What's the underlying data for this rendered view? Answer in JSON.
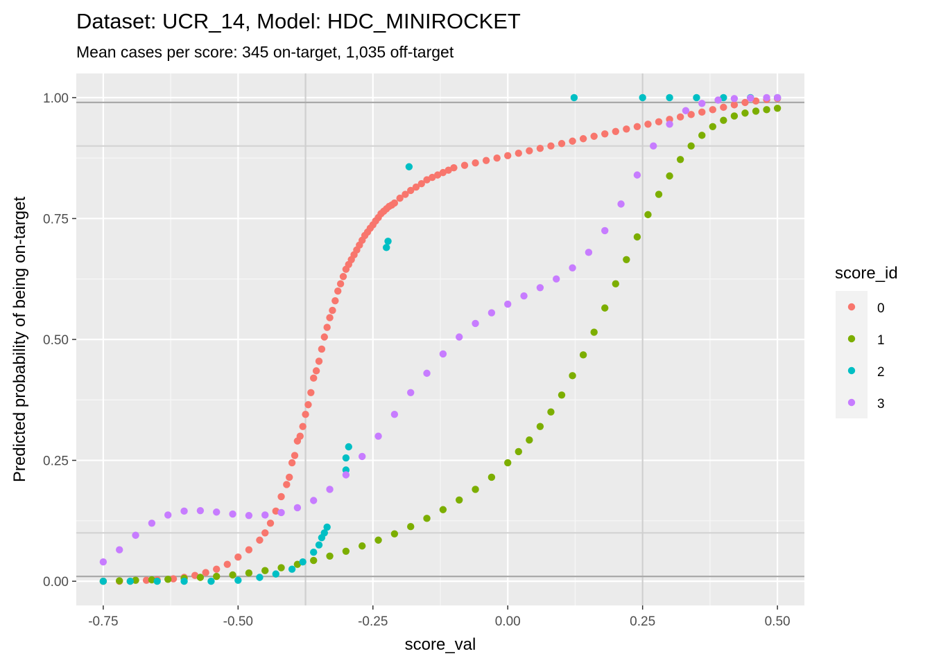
{
  "chart_data": {
    "type": "scatter",
    "title": "Dataset: UCR_14, Model: HDC_MINIROCKET",
    "subtitle": "Mean cases per score: 345 on-target, 1,035 off-target",
    "xlabel": "score_val",
    "ylabel": "Predicted probability of being on-target",
    "xlim": [
      -0.8,
      0.55
    ],
    "ylim": [
      -0.05,
      1.05
    ],
    "x_ticks": [
      -0.75,
      -0.5,
      -0.25,
      0.0,
      0.25,
      0.5
    ],
    "x_tick_labels": [
      "-0.75",
      "-0.50",
      "-0.25",
      "0.00",
      "0.25",
      "0.50"
    ],
    "y_ticks": [
      0.0,
      0.25,
      0.5,
      0.75,
      1.0
    ],
    "y_tick_labels": [
      "0.00",
      "0.25",
      "0.50",
      "0.75",
      "1.00"
    ],
    "grid": true,
    "reference_lines": {
      "vertical": [
        -0.375,
        0.25
      ],
      "horizontal_dark": [
        0.01,
        0.99
      ],
      "horizontal_light": [
        0.1,
        0.9
      ]
    },
    "legend": {
      "title": "score_id",
      "position": "right",
      "entries": [
        {
          "label": "0",
          "color": "#F8766D"
        },
        {
          "label": "1",
          "color": "#7CAE00"
        },
        {
          "label": "2",
          "color": "#00BFC4"
        },
        {
          "label": "3",
          "color": "#C77CFF"
        }
      ]
    },
    "series": [
      {
        "name": "0",
        "color": "#F8766D",
        "points": [
          [
            -0.75,
            0.0
          ],
          [
            -0.72,
            0.0
          ],
          [
            -0.7,
            0.0
          ],
          [
            -0.67,
            0.002
          ],
          [
            -0.65,
            0.003
          ],
          [
            -0.62,
            0.005
          ],
          [
            -0.6,
            0.008
          ],
          [
            -0.58,
            0.012
          ],
          [
            -0.56,
            0.018
          ],
          [
            -0.54,
            0.025
          ],
          [
            -0.52,
            0.035
          ],
          [
            -0.5,
            0.05
          ],
          [
            -0.48,
            0.065
          ],
          [
            -0.46,
            0.085
          ],
          [
            -0.45,
            0.1
          ],
          [
            -0.44,
            0.12
          ],
          [
            -0.43,
            0.145
          ],
          [
            -0.42,
            0.175
          ],
          [
            -0.41,
            0.2
          ],
          [
            -0.405,
            0.215
          ],
          [
            -0.4,
            0.245
          ],
          [
            -0.395,
            0.26
          ],
          [
            -0.39,
            0.29
          ],
          [
            -0.385,
            0.3
          ],
          [
            -0.38,
            0.32
          ],
          [
            -0.375,
            0.345
          ],
          [
            -0.37,
            0.365
          ],
          [
            -0.365,
            0.39
          ],
          [
            -0.36,
            0.42
          ],
          [
            -0.355,
            0.435
          ],
          [
            -0.35,
            0.455
          ],
          [
            -0.345,
            0.48
          ],
          [
            -0.34,
            0.505
          ],
          [
            -0.335,
            0.525
          ],
          [
            -0.33,
            0.545
          ],
          [
            -0.325,
            0.56
          ],
          [
            -0.32,
            0.58
          ],
          [
            -0.315,
            0.6
          ],
          [
            -0.31,
            0.615
          ],
          [
            -0.305,
            0.63
          ],
          [
            -0.3,
            0.645
          ],
          [
            -0.295,
            0.655
          ],
          [
            -0.29,
            0.665
          ],
          [
            -0.285,
            0.675
          ],
          [
            -0.28,
            0.685
          ],
          [
            -0.275,
            0.695
          ],
          [
            -0.27,
            0.705
          ],
          [
            -0.265,
            0.715
          ],
          [
            -0.26,
            0.722
          ],
          [
            -0.255,
            0.73
          ],
          [
            -0.25,
            0.737
          ],
          [
            -0.245,
            0.745
          ],
          [
            -0.24,
            0.752
          ],
          [
            -0.235,
            0.76
          ],
          [
            -0.23,
            0.765
          ],
          [
            -0.225,
            0.77
          ],
          [
            -0.22,
            0.775
          ],
          [
            -0.215,
            0.778
          ],
          [
            -0.21,
            0.782
          ],
          [
            -0.2,
            0.792
          ],
          [
            -0.19,
            0.8
          ],
          [
            -0.18,
            0.808
          ],
          [
            -0.17,
            0.815
          ],
          [
            -0.16,
            0.822
          ],
          [
            -0.15,
            0.83
          ],
          [
            -0.14,
            0.835
          ],
          [
            -0.13,
            0.84
          ],
          [
            -0.12,
            0.845
          ],
          [
            -0.11,
            0.85
          ],
          [
            -0.1,
            0.855
          ],
          [
            -0.08,
            0.86
          ],
          [
            -0.06,
            0.865
          ],
          [
            -0.04,
            0.87
          ],
          [
            -0.02,
            0.875
          ],
          [
            0.0,
            0.88
          ],
          [
            0.02,
            0.885
          ],
          [
            0.04,
            0.89
          ],
          [
            0.06,
            0.895
          ],
          [
            0.08,
            0.9
          ],
          [
            0.1,
            0.905
          ],
          [
            0.12,
            0.91
          ],
          [
            0.14,
            0.915
          ],
          [
            0.16,
            0.92
          ],
          [
            0.18,
            0.925
          ],
          [
            0.2,
            0.93
          ],
          [
            0.22,
            0.935
          ],
          [
            0.24,
            0.94
          ],
          [
            0.26,
            0.945
          ],
          [
            0.28,
            0.95
          ],
          [
            0.3,
            0.955
          ],
          [
            0.32,
            0.96
          ],
          [
            0.34,
            0.965
          ],
          [
            0.36,
            0.97
          ],
          [
            0.38,
            0.975
          ],
          [
            0.4,
            0.98
          ],
          [
            0.42,
            0.985
          ],
          [
            0.44,
            0.99
          ],
          [
            0.46,
            0.993
          ],
          [
            0.48,
            0.996
          ],
          [
            0.5,
            0.998
          ]
        ]
      },
      {
        "name": "1",
        "color": "#7CAE00",
        "points": [
          [
            -0.75,
            0.0
          ],
          [
            -0.72,
            0.001
          ],
          [
            -0.69,
            0.002
          ],
          [
            -0.66,
            0.003
          ],
          [
            -0.63,
            0.004
          ],
          [
            -0.6,
            0.006
          ],
          [
            -0.57,
            0.008
          ],
          [
            -0.54,
            0.01
          ],
          [
            -0.51,
            0.013
          ],
          [
            -0.48,
            0.017
          ],
          [
            -0.45,
            0.022
          ],
          [
            -0.42,
            0.028
          ],
          [
            -0.39,
            0.035
          ],
          [
            -0.36,
            0.043
          ],
          [
            -0.33,
            0.052
          ],
          [
            -0.3,
            0.062
          ],
          [
            -0.27,
            0.073
          ],
          [
            -0.24,
            0.085
          ],
          [
            -0.21,
            0.098
          ],
          [
            -0.18,
            0.113
          ],
          [
            -0.15,
            0.13
          ],
          [
            -0.12,
            0.148
          ],
          [
            -0.09,
            0.168
          ],
          [
            -0.06,
            0.19
          ],
          [
            -0.03,
            0.215
          ],
          [
            0.0,
            0.245
          ],
          [
            0.02,
            0.268
          ],
          [
            0.04,
            0.292
          ],
          [
            0.06,
            0.32
          ],
          [
            0.08,
            0.35
          ],
          [
            0.1,
            0.385
          ],
          [
            0.12,
            0.425
          ],
          [
            0.14,
            0.468
          ],
          [
            0.16,
            0.515
          ],
          [
            0.18,
            0.565
          ],
          [
            0.2,
            0.615
          ],
          [
            0.22,
            0.665
          ],
          [
            0.24,
            0.712
          ],
          [
            0.26,
            0.758
          ],
          [
            0.28,
            0.8
          ],
          [
            0.3,
            0.838
          ],
          [
            0.32,
            0.872
          ],
          [
            0.34,
            0.9
          ],
          [
            0.36,
            0.922
          ],
          [
            0.38,
            0.94
          ],
          [
            0.4,
            0.953
          ],
          [
            0.42,
            0.962
          ],
          [
            0.44,
            0.968
          ],
          [
            0.46,
            0.972
          ],
          [
            0.48,
            0.975
          ],
          [
            0.5,
            0.978
          ]
        ]
      },
      {
        "name": "2",
        "color": "#00BFC4",
        "points": [
          [
            -0.75,
            0.0
          ],
          [
            -0.7,
            0.0
          ],
          [
            -0.65,
            0.0
          ],
          [
            -0.6,
            0.0
          ],
          [
            -0.55,
            0.0
          ],
          [
            -0.5,
            0.002
          ],
          [
            -0.46,
            0.008
          ],
          [
            -0.43,
            0.015
          ],
          [
            -0.4,
            0.025
          ],
          [
            -0.38,
            0.04
          ],
          [
            -0.36,
            0.06
          ],
          [
            -0.35,
            0.075
          ],
          [
            -0.345,
            0.09
          ],
          [
            -0.34,
            0.1
          ],
          [
            -0.335,
            0.112
          ],
          [
            -0.3,
            0.23
          ],
          [
            -0.3,
            0.255
          ],
          [
            -0.295,
            0.278
          ],
          [
            -0.225,
            0.69
          ],
          [
            -0.222,
            0.703
          ],
          [
            -0.183,
            0.857
          ],
          [
            0.123,
            1.0
          ],
          [
            0.25,
            1.0
          ],
          [
            0.3,
            1.0
          ],
          [
            0.35,
            1.0
          ],
          [
            0.4,
            1.0
          ],
          [
            0.45,
            1.0
          ],
          [
            0.5,
            1.0
          ]
        ]
      },
      {
        "name": "3",
        "color": "#C77CFF",
        "points": [
          [
            -0.75,
            0.04
          ],
          [
            -0.72,
            0.065
          ],
          [
            -0.69,
            0.095
          ],
          [
            -0.66,
            0.12
          ],
          [
            -0.63,
            0.137
          ],
          [
            -0.6,
            0.145
          ],
          [
            -0.57,
            0.146
          ],
          [
            -0.54,
            0.143
          ],
          [
            -0.51,
            0.139
          ],
          [
            -0.48,
            0.136
          ],
          [
            -0.45,
            0.137
          ],
          [
            -0.42,
            0.142
          ],
          [
            -0.39,
            0.152
          ],
          [
            -0.36,
            0.167
          ],
          [
            -0.33,
            0.19
          ],
          [
            -0.3,
            0.22
          ],
          [
            -0.27,
            0.258
          ],
          [
            -0.24,
            0.3
          ],
          [
            -0.21,
            0.345
          ],
          [
            -0.18,
            0.39
          ],
          [
            -0.15,
            0.43
          ],
          [
            -0.12,
            0.47
          ],
          [
            -0.09,
            0.505
          ],
          [
            -0.06,
            0.533
          ],
          [
            -0.03,
            0.555
          ],
          [
            0.0,
            0.573
          ],
          [
            0.03,
            0.59
          ],
          [
            0.06,
            0.607
          ],
          [
            0.09,
            0.625
          ],
          [
            0.12,
            0.648
          ],
          [
            0.15,
            0.68
          ],
          [
            0.18,
            0.725
          ],
          [
            0.21,
            0.78
          ],
          [
            0.24,
            0.84
          ],
          [
            0.27,
            0.9
          ],
          [
            0.3,
            0.945
          ],
          [
            0.33,
            0.973
          ],
          [
            0.36,
            0.988
          ],
          [
            0.39,
            0.995
          ],
          [
            0.42,
            0.998
          ],
          [
            0.45,
            0.999
          ],
          [
            0.48,
            1.0
          ],
          [
            0.5,
            1.0
          ]
        ]
      }
    ]
  }
}
